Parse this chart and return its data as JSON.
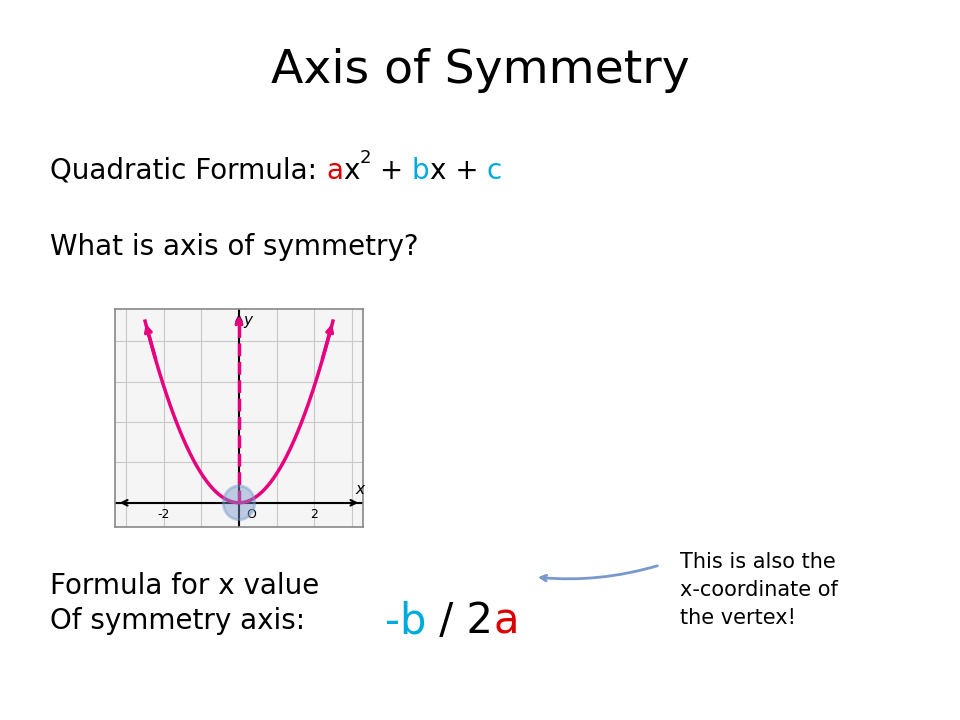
{
  "title": "Axis of Symmetry",
  "title_fontsize": 34,
  "background_color": "#ffffff",
  "text_color": "#000000",
  "color_a": "#dd0000",
  "color_b": "#00aadd",
  "color_c": "#00aadd",
  "line2": "What is axis of symmetry?",
  "formula_color_b": "#00aadd",
  "formula_color_a": "#dd0000",
  "note": "This is also the\nx-coordinate of\nthe vertex!",
  "parabola_color": "#e8007f",
  "axis_sym_color": "#e8007f",
  "vertex_color": "#7799cc",
  "arrow_color": "#7799cc"
}
